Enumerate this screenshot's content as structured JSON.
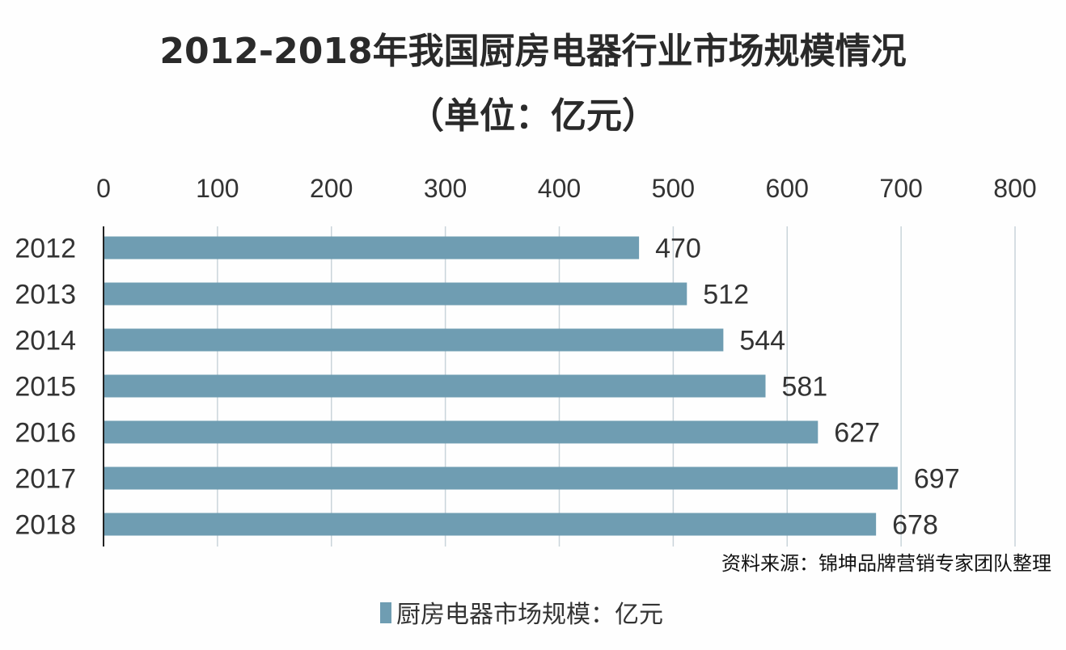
{
  "chart_data": {
    "type": "bar",
    "orientation": "horizontal",
    "title": "2012-2018年我国厨房电器行业市场规模情况",
    "subtitle": "（单位：亿元）",
    "categories": [
      "2012",
      "2013",
      "2014",
      "2015",
      "2016",
      "2017",
      "2018"
    ],
    "series": [
      {
        "name": "厨房电器市场规模：亿元",
        "values": [
          470,
          512,
          544,
          581,
          627,
          697,
          678
        ],
        "color": "#6f9db2"
      }
    ],
    "xlim": [
      0,
      800
    ],
    "xticks": [
      0,
      100,
      200,
      300,
      400,
      500,
      600,
      700,
      800
    ],
    "x_axis_position": "top",
    "grid": true,
    "legend": "bottom-center",
    "source": "资料来源：锦坤品牌营销专家团队整理"
  }
}
